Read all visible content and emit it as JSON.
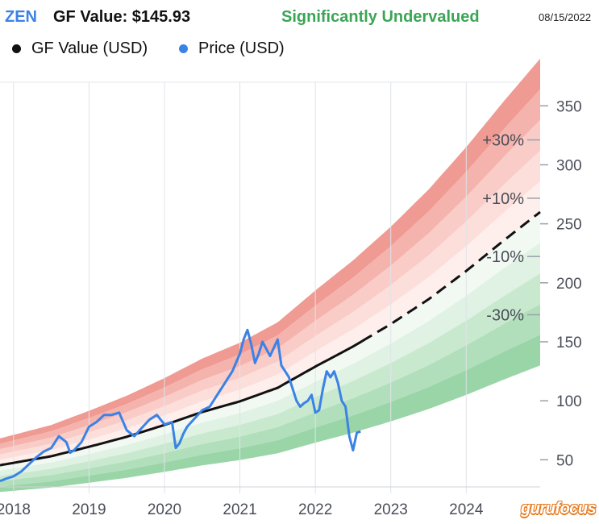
{
  "header": {
    "ticker": "ZEN",
    "gf_value_label": "GF Value: $145.93",
    "valuation": "Significantly Undervalued",
    "date": "08/15/2022"
  },
  "colors": {
    "ticker": "#3b82e6",
    "valuation": "#3aa655",
    "gf_value_line": "#111111",
    "price_line": "#3b82e6",
    "logo": "#e87a1e"
  },
  "chart_data": {
    "type": "line",
    "title": "",
    "xlabel": "",
    "ylabel": "",
    "x_axis": {
      "type": "time",
      "range": [
        2017.82,
        2024.98
      ],
      "ticks": [
        2018,
        2019,
        2020,
        2021,
        2022,
        2023,
        2024
      ],
      "tick_labels": [
        "2018",
        "2019",
        "2020",
        "2021",
        "2022",
        "2023",
        "2024"
      ]
    },
    "y_axis": {
      "position": "right",
      "range": [
        27,
        370
      ],
      "ticks": [
        50,
        100,
        150,
        200,
        250,
        300,
        350
      ],
      "tick_labels": [
        "50",
        "100",
        "150",
        "200",
        "250",
        "300",
        "350"
      ]
    },
    "legend": {
      "placement": "top-left",
      "entries": [
        "GF Value (USD)",
        "Price (USD)"
      ]
    },
    "band_labels": [
      {
        "label": "+30%",
        "multiplier": 1.3
      },
      {
        "label": "+10%",
        "multiplier": 1.1
      },
      {
        "label": "-10%",
        "multiplier": 0.9
      },
      {
        "label": "-30%",
        "multiplier": 0.7
      }
    ],
    "band_multipliers": [
      1.5,
      1.4,
      1.3,
      1.2,
      1.1,
      1.0,
      0.9,
      0.8,
      0.7,
      0.6,
      0.5
    ],
    "series": [
      {
        "name": "GF Value (USD)",
        "color": "#111111",
        "x": [
          2017.82,
          2018.5,
          2019.0,
          2019.5,
          2020.0,
          2020.5,
          2021.0,
          2021.5,
          2022.0,
          2022.5,
          2023.0,
          2023.5,
          2024.0,
          2024.5,
          2024.98
        ],
        "y": [
          45.4,
          53,
          61,
          69.5,
          79.5,
          90.5,
          99.5,
          111,
          129,
          146,
          165,
          186,
          210,
          236,
          260
        ],
        "projected_from_x": 2022.62
      },
      {
        "name": "Price (USD)",
        "color": "#3b82e6",
        "x": [
          2017.82,
          2017.9,
          2018.0,
          2018.1,
          2018.2,
          2018.3,
          2018.4,
          2018.5,
          2018.6,
          2018.7,
          2018.75,
          2018.8,
          2018.9,
          2019.0,
          2019.1,
          2019.2,
          2019.3,
          2019.4,
          2019.5,
          2019.6,
          2019.7,
          2019.8,
          2019.9,
          2020.0,
          2020.1,
          2020.15,
          2020.2,
          2020.25,
          2020.3,
          2020.4,
          2020.5,
          2020.6,
          2020.7,
          2020.8,
          2020.9,
          2021.0,
          2021.05,
          2021.1,
          2021.15,
          2021.2,
          2021.25,
          2021.3,
          2021.4,
          2021.5,
          2021.55,
          2021.6,
          2021.65,
          2021.7,
          2021.75,
          2021.8,
          2021.85,
          2021.9,
          2021.95,
          2022.0,
          2022.05,
          2022.1,
          2022.15,
          2022.2,
          2022.25,
          2022.3,
          2022.35,
          2022.4,
          2022.45,
          2022.5,
          2022.55,
          2022.6
        ],
        "y": [
          32,
          34,
          36,
          40,
          46,
          52,
          57,
          60,
          70,
          65,
          56,
          58,
          65,
          78,
          82,
          88,
          88,
          90,
          75,
          70,
          77,
          84,
          88,
          80,
          82,
          60,
          64,
          72,
          78,
          85,
          92,
          95,
          105,
          115,
          125,
          140,
          152,
          160,
          148,
          132,
          140,
          150,
          138,
          152,
          130,
          125,
          120,
          110,
          100,
          95,
          98,
          100,
          105,
          90,
          92,
          110,
          125,
          120,
          125,
          115,
          100,
          95,
          70,
          58,
          73,
          74
        ]
      }
    ]
  },
  "logo": {
    "text": "gurufocus"
  }
}
